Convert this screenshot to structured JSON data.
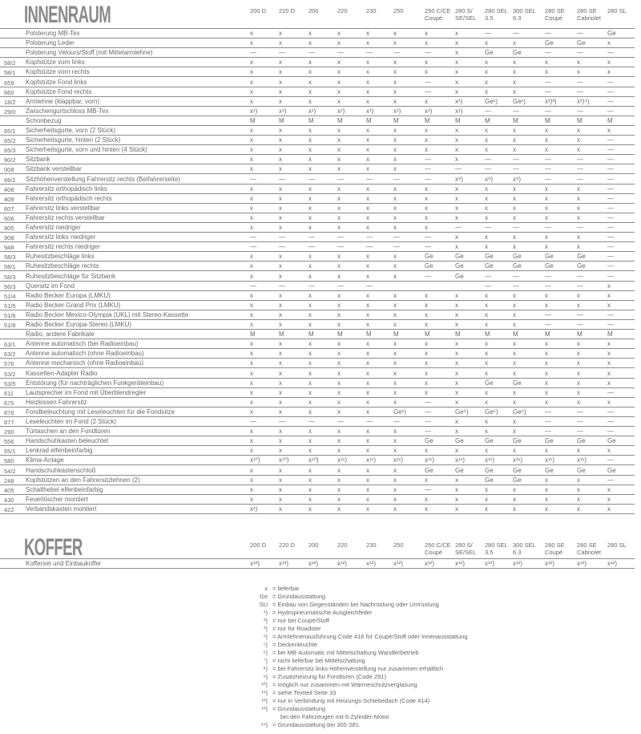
{
  "interior": {
    "title": "INNENRAUM",
    "columns": [
      "200 D",
      "220 D",
      "200",
      "220",
      "230",
      "250",
      "250 C/CE Coupé",
      "280 S/ SE/SEL",
      "280 SEL 3.5",
      "300 SEL 6.3",
      "280 SE Coupé",
      "280 SE Cabriolet",
      "280 SL"
    ],
    "rows": [
      {
        "code": "",
        "label": "Polsterung MB-Tex",
        "values": [
          "x",
          "x",
          "x",
          "x",
          "x",
          "x",
          "x",
          "x",
          "—",
          "—",
          "—",
          "—",
          "Ge"
        ]
      },
      {
        "code": "",
        "label": "Polsterung Leder",
        "values": [
          "x",
          "x",
          "x",
          "x",
          "x",
          "x",
          "x",
          "x",
          "x",
          "x",
          "Ge",
          "Ge",
          "x"
        ]
      },
      {
        "code": "",
        "label": "Polsterung Velours/Stoff (mit Mittelarmlehne)",
        "values": [
          "—",
          "—",
          "—",
          "—",
          "—",
          "—",
          "—",
          "x",
          "Ge",
          "Ge",
          "—",
          "—",
          "—"
        ]
      },
      {
        "code": "58/2",
        "label": "Kopfstütze vorn links",
        "values": [
          "x",
          "x",
          "x",
          "x",
          "x",
          "x",
          "x",
          "x",
          "x",
          "x",
          "x",
          "x",
          "x"
        ]
      },
      {
        "code": "58/1",
        "label": "Kopfstütze vorn rechts",
        "values": [
          "x",
          "x",
          "x",
          "x",
          "x",
          "x",
          "x",
          "x",
          "x",
          "x",
          "x",
          "x",
          "x"
        ]
      },
      {
        "code": "659",
        "label": "Kopfstütze Fond links",
        "values": [
          "x",
          "x",
          "x",
          "x",
          "x",
          "x",
          "—",
          "x",
          "x",
          "x",
          "—",
          "—",
          "—"
        ]
      },
      {
        "code": "660",
        "label": "Kopfstütze Fond rechts",
        "values": [
          "x",
          "x",
          "x",
          "x",
          "x",
          "x",
          "—",
          "x",
          "x",
          "x",
          "—",
          "—",
          "—"
        ]
      },
      {
        "code": "18/2",
        "label": "Armlehne (klappbar, vorn)",
        "values": [
          "x",
          "x",
          "x",
          "x",
          "x",
          "x",
          "x",
          "x¹)",
          "Ge¹)",
          "Ge¹)",
          "x²)³)",
          "x²)⁴)",
          "—"
        ]
      },
      {
        "code": "29/0",
        "label": "Zwischengurtschloss MB-Tex",
        "values": [
          "x¹)",
          "x¹)",
          "x¹)",
          "x¹)",
          "x¹)",
          "x¹)",
          "x¹)",
          "x¹)",
          "—",
          "—",
          "—",
          "—",
          "—"
        ]
      },
      {
        "code": "",
        "label": "Schonbezug",
        "values": [
          "M",
          "M",
          "M",
          "M",
          "M",
          "M",
          "M",
          "M",
          "M",
          "M",
          "M",
          "M",
          "M"
        ]
      },
      {
        "code": "65/1",
        "label": "Sicherheitsgurte, vorn (2 Stück)",
        "values": [
          "x",
          "x",
          "x",
          "x",
          "x",
          "x",
          "x",
          "x",
          "x",
          "x",
          "x",
          "x",
          "x"
        ]
      },
      {
        "code": "65/2",
        "label": "Sicherheitsgurte, hinten (2 Stück)",
        "values": [
          "x",
          "x",
          "x",
          "x",
          "x",
          "x",
          "x",
          "x",
          "x",
          "x",
          "x",
          "x",
          "—"
        ]
      },
      {
        "code": "65/3",
        "label": "Sicherheitsgurte, vorn und hinten (4 Stück)",
        "values": [
          "x",
          "x",
          "x",
          "x",
          "x",
          "x",
          "x",
          "x",
          "x",
          "x",
          "x",
          "x",
          "—"
        ]
      },
      {
        "code": "90/2",
        "label": "Sitzbank",
        "values": [
          "x",
          "x",
          "x",
          "x",
          "x",
          "x",
          "—",
          "x",
          "—",
          "—",
          "—",
          "—",
          "—"
        ]
      },
      {
        "code": "008",
        "label": "Sitzbank verstellbar",
        "values": [
          "x",
          "x",
          "x",
          "x",
          "x",
          "x",
          "—",
          "—",
          "—",
          "—",
          "—",
          "—",
          "—"
        ]
      },
      {
        "code": "66/1",
        "label": "Sitzhöhenverstellung Fahrersitz rechts (Beifahrerseite)",
        "values": [
          "—",
          "—",
          "—",
          "—",
          "—",
          "—",
          "—",
          "x⁸)",
          "x⁸)",
          "x⁸)",
          "—",
          "—",
          "—"
        ]
      },
      {
        "code": "408",
        "label": "Fahrersitz orthopädisch links",
        "values": [
          "x",
          "x",
          "x",
          "x",
          "x",
          "x",
          "x",
          "x",
          "x",
          "x",
          "x",
          "x",
          "—"
        ]
      },
      {
        "code": "409",
        "label": "Fahrersitz orthopädisch rechts",
        "values": [
          "x",
          "x",
          "x",
          "x",
          "x",
          "x",
          "x",
          "x",
          "x",
          "x",
          "x",
          "x",
          "—"
        ]
      },
      {
        "code": "607",
        "label": "Fahrersitz links verstellbar",
        "values": [
          "x",
          "x",
          "x",
          "x",
          "x",
          "x",
          "x",
          "x",
          "x",
          "x",
          "x",
          "x",
          "—"
        ]
      },
      {
        "code": "606",
        "label": "Fahrersitz rechts verstellbar",
        "values": [
          "x",
          "x",
          "x",
          "x",
          "x",
          "x",
          "x",
          "x",
          "x",
          "x",
          "x",
          "x",
          "—"
        ]
      },
      {
        "code": "905",
        "label": "Fahrersitz niedriger",
        "values": [
          "x",
          "x",
          "x",
          "x",
          "x",
          "x",
          "x",
          "—",
          "—",
          "—",
          "—",
          "—",
          "—"
        ]
      },
      {
        "code": "908",
        "label": "Fahrersitz links niedriger",
        "values": [
          "—",
          "—",
          "—",
          "—",
          "—",
          "—",
          "—",
          "x",
          "x",
          "x",
          "x",
          "x",
          "—"
        ]
      },
      {
        "code": "948",
        "label": "Fahrersitz rechts niedriger",
        "values": [
          "—",
          "—",
          "—",
          "—",
          "—",
          "—",
          "—",
          "x",
          "x",
          "x",
          "x",
          "x",
          "—"
        ]
      },
      {
        "code": "58/3",
        "label": "Ruhesitzbeschläge links",
        "values": [
          "x",
          "x",
          "x",
          "x",
          "x",
          "x",
          "Ge",
          "Ge",
          "Ge",
          "Ge",
          "Ge",
          "Ge",
          "—"
        ]
      },
      {
        "code": "58/1",
        "label": "Ruhesitzbeschläge rechts",
        "values": [
          "x",
          "x",
          "x",
          "x",
          "x",
          "x",
          "Ge",
          "Ge",
          "Ge",
          "Ge",
          "Ge",
          "Ge",
          "—"
        ]
      },
      {
        "code": "58/3",
        "label": "Ruhesitzbeschläge für Sitzbank",
        "values": [
          "x",
          "x",
          "x",
          "x",
          "x",
          "x",
          "—",
          "Ge",
          "—",
          "—",
          "—",
          "—",
          "—"
        ]
      },
      {
        "code": "56/3",
        "label": "Quersitz im Fond",
        "values": [
          "—",
          "—",
          "—",
          "—",
          "—",
          "",
          "",
          "",
          "—",
          "—",
          "—",
          "—",
          "x"
        ]
      },
      {
        "code": "51/4",
        "label": "Radio Becker Europa (LMKU)",
        "values": [
          "x",
          "x",
          "x",
          "x",
          "x",
          "x",
          "x",
          "x",
          "x",
          "x",
          "x",
          "x",
          "x"
        ]
      },
      {
        "code": "51/5",
        "label": "Radio Becker Grand Prix (LMKU)",
        "values": [
          "x",
          "x",
          "x",
          "x",
          "x",
          "x",
          "x",
          "x",
          "x",
          "x",
          "x",
          "x",
          "x"
        ]
      },
      {
        "code": "51/6",
        "label": "Radio Becker Mexico-Olympia (UKL) mit Stereo-Kassette",
        "values": [
          "x",
          "x",
          "x",
          "x",
          "x",
          "x",
          "x",
          "x",
          "x",
          "x",
          "—",
          "—",
          "—"
        ]
      },
      {
        "code": "51/8",
        "label": "Radio Becker Europa-Stereo (LMKU)",
        "values": [
          "x",
          "x",
          "x",
          "x",
          "x",
          "x",
          "x",
          "x",
          "x",
          "x",
          "—",
          "—",
          "—"
        ]
      },
      {
        "code": "",
        "label": "Radio, andere Fabrikate",
        "values": [
          "M",
          "M",
          "M",
          "M",
          "M",
          "M",
          "M",
          "M",
          "M",
          "M",
          "M",
          "M",
          "M"
        ]
      },
      {
        "code": "63/1",
        "label": "Antenne automatisch (bei Radioeinbau)",
        "values": [
          "x",
          "x",
          "x",
          "x",
          "x",
          "x",
          "x",
          "x",
          "x",
          "x",
          "x",
          "x",
          "x"
        ]
      },
      {
        "code": "63/2",
        "label": "Antenne automatisch (ohne Radioeinbau)",
        "values": [
          "x",
          "x",
          "x",
          "x",
          "x",
          "x",
          "x",
          "x",
          "x",
          "x",
          "x",
          "x",
          "x"
        ]
      },
      {
        "code": "576",
        "label": "Antenne mechanisch (ohne Radioeinbau)",
        "values": [
          "x",
          "x",
          "x",
          "x",
          "x",
          "x",
          "x",
          "x",
          "x",
          "x",
          "x",
          "x",
          "x"
        ]
      },
      {
        "code": "53/2",
        "label": "Kassetten-Adapter Radio",
        "values": [
          "x",
          "x",
          "x",
          "x",
          "x",
          "x",
          "x",
          "x",
          "x",
          "x",
          "x",
          "x",
          "x"
        ]
      },
      {
        "code": "53/5",
        "label": "Entstörung (für nachträglichen Funkgeräteinbau)",
        "values": [
          "x",
          "x",
          "x",
          "x",
          "x",
          "x",
          "x",
          "x",
          "Ge",
          "Ge",
          "x",
          "x",
          "x"
        ]
      },
      {
        "code": "611",
        "label": "Lautsprecher im Fond mit Überblendregler",
        "values": [
          "x",
          "x",
          "x",
          "x",
          "x",
          "x",
          "x",
          "x",
          "x",
          "x",
          "x",
          "x",
          "—"
        ]
      },
      {
        "code": "675",
        "label": "Heizkissen Fahrersitz",
        "values": [
          "x",
          "x",
          "x",
          "x",
          "x",
          "x",
          "—",
          "x",
          "x",
          "x",
          "x",
          "x",
          "x"
        ]
      },
      {
        "code": "876",
        "label": "Fondbeleuchtung mit Leseleuchten für die Fondsitze",
        "values": [
          "x",
          "x",
          "x",
          "x",
          "x",
          "Ge¹)",
          "—",
          "Ge⁵)",
          "Ge⁵)",
          "Ge⁵)",
          "—",
          "—",
          "—"
        ]
      },
      {
        "code": "877",
        "label": "Leseleuchten im Fond (2 Stück)",
        "values": [
          "—",
          "—",
          "—",
          "—",
          "—",
          "—",
          "—",
          "x",
          "x",
          "x",
          "—",
          "—",
          "—"
        ]
      },
      {
        "code": "290",
        "label": "Türtaschen an den Fondtüren",
        "values": [
          "x",
          "x",
          "x",
          "x",
          "x",
          "x",
          "—",
          "x",
          "x",
          "x",
          "—",
          "—",
          "—"
        ]
      },
      {
        "code": "556",
        "label": "Handschuhkasten beleuchtet",
        "values": [
          "x",
          "x",
          "x",
          "x",
          "x",
          "x",
          "Ge",
          "Ge",
          "Ge",
          "Ge",
          "Ge",
          "Ge",
          "Ge"
        ]
      },
      {
        "code": "55/1",
        "label": "Lenkrad elfenbeinfarbig",
        "values": [
          "x",
          "x",
          "x",
          "x",
          "x",
          "x",
          "x",
          "x",
          "x",
          "x",
          "x",
          "x",
          "x"
        ]
      },
      {
        "code": "580",
        "label": "Klima-Anlage",
        "values": [
          "x¹⁰)",
          "x¹⁰)",
          "x¹⁰)",
          "x¹¹)",
          "x¹¹)",
          "x¹¹)",
          "x¹¹)",
          "x¹¹)",
          "x¹¹)",
          "x¹¹)",
          "x¹¹)",
          "x¹¹)",
          "—"
        ]
      },
      {
        "code": "54/2",
        "label": "Handschuhkastenschloß",
        "values": [
          "x",
          "x",
          "x",
          "x",
          "x",
          "x",
          "Ge",
          "Ge",
          "Ge",
          "Ge",
          "Ge",
          "Ge",
          "Ge"
        ]
      },
      {
        "code": "248",
        "label": "Kopfstützen an den Fahrersitzlehnen (2)",
        "values": [
          "x",
          "x",
          "x",
          "x",
          "x",
          "x",
          "x",
          "x",
          "Ge",
          "Ge",
          "x",
          "x",
          "—"
        ]
      },
      {
        "code": "405",
        "label": "Schalthebel elfenbeinfarbig",
        "values": [
          "x",
          "x",
          "x",
          "x",
          "x",
          "x",
          "—",
          "x",
          "x",
          "x",
          "x",
          "x",
          "x"
        ]
      },
      {
        "code": "430",
        "label": "Feuerlöscher montiert",
        "values": [
          "x",
          "x",
          "x",
          "x",
          "x",
          "x",
          "x",
          "x",
          "x",
          "x",
          "x",
          "x",
          "x"
        ]
      },
      {
        "code": "422",
        "label": "Verbandskasten montiert",
        "values": [
          "x¹)",
          "x",
          "x",
          "x",
          "x",
          "x",
          "x",
          "x",
          "x",
          "x",
          "x",
          "x",
          "x"
        ]
      }
    ]
  },
  "luggage": {
    "title": "KOFFER",
    "columns": [
      "200 D",
      "220 D",
      "200",
      "220",
      "230",
      "250",
      "250 C/CE Coupé",
      "280 S/ SE/SEL",
      "280 SEL 3.5",
      "300 SEL 6.3",
      "280 SE Coupé",
      "280 SE Cabriolet",
      "280 SL"
    ],
    "rows": [
      {
        "code": "",
        "label": "Kofferset und Einbaukoffer",
        "values": [
          "x¹²)",
          "x¹²)",
          "x¹²)",
          "x¹²)",
          "x¹²)",
          "x¹²)",
          "x¹²)",
          "x¹²)",
          "x¹²)",
          "x¹²)",
          "x¹²)",
          "x¹²)",
          "x¹²)"
        ]
      }
    ]
  },
  "legend": [
    {
      "symbol": "x",
      "text": "= lieferbar"
    },
    {
      "symbol": "Ge",
      "text": "= Grundausstattung"
    },
    {
      "symbol": "SU",
      "text": "= Einbau von Gegenständen bei Nachrüstung oder Umrüstung"
    },
    {
      "symbol": "¹)",
      "text": "= Hydropneumatische Ausgleichfeder"
    },
    {
      "symbol": "²)",
      "text": "= nur bei Coupé/Stoff"
    },
    {
      "symbol": "³)",
      "text": "= nur für Roadster"
    },
    {
      "symbol": "⁴)",
      "text": "= Armlehnenausführung Code 416 für Coupé/Stoff oder Innenausstattung"
    },
    {
      "symbol": "⁵)",
      "text": "= Deckenleuchte"
    },
    {
      "symbol": "⁶)",
      "text": "= bei MB-Automatic mit Mittelschaltung Wandlerbetrieb"
    },
    {
      "symbol": "⁷)",
      "text": "= nicht lieferbar bei Mittelschaltung"
    },
    {
      "symbol": "⁸)",
      "text": "= bei Fahrersitz links Höhenverstellung nur zusammen erhältlich"
    },
    {
      "symbol": "⁹)",
      "text": "= Zusatzheizung für Fondtüren (Code 291)"
    },
    {
      "symbol": "¹⁰)",
      "text": "= möglich nur zusammen mit Wärmeschutzverglasung"
    },
    {
      "symbol": "¹¹)",
      "text": "= siehe Textteil Seite 33"
    },
    {
      "symbol": "¹²)",
      "text": "= nur in Verbindung mit Heizungs-Schiebedach (Code 414)"
    },
    {
      "symbol": "¹³)",
      "text": "= Grundausstattung"
    },
    {
      "symbol": "",
      "text": "bei den Fahrzeugen mit 6-Zylinder-Motor"
    },
    {
      "symbol": "¹⁴)",
      "text": "= Grundausstattung bei 300 SEL"
    }
  ]
}
